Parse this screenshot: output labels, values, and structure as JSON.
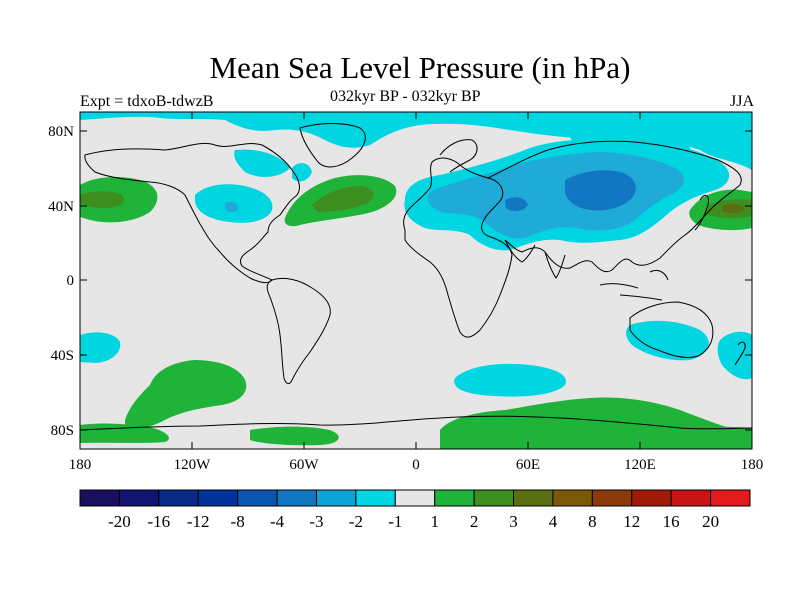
{
  "title": "Mean Sea Level Pressure (in hPa)",
  "subtitle_left": "Expt = tdxoB-tdwzB",
  "subtitle_center": "032kyr BP - 032kyr BP",
  "subtitle_right": "JJA",
  "lat_labels": [
    "80N",
    "40N",
    "0",
    "40S",
    "80S"
  ],
  "lon_labels": [
    "180",
    "120W",
    "60W",
    "0",
    "60E",
    "120E",
    "180"
  ],
  "colorbar": {
    "labels": [
      "-20",
      "-16",
      "-12",
      "-8",
      "-4",
      "-3",
      "-2",
      "-1",
      "1",
      "2",
      "3",
      "4",
      "8",
      "12",
      "16",
      "20"
    ],
    "colors": [
      "#1a0f5e",
      "#111571",
      "#0a2885",
      "#00349a",
      "#0a55ad",
      "#1177c2",
      "#0da3d6",
      "#00d5e2",
      "#e6e6e6",
      "#1fb33a",
      "#3e8e1f",
      "#5a6f12",
      "#7a5a08",
      "#8c3a0a",
      "#a01c08",
      "#c81414",
      "#e31a1a"
    ]
  },
  "map_colors": {
    "background": "#e6e6e6",
    "cyan": "#00d5e2",
    "lightblue": "#1faad8",
    "blue": "#1177c2",
    "green": "#1fb33a",
    "darkgreen": "#3e8e1f",
    "olive": "#5a6f12"
  }
}
